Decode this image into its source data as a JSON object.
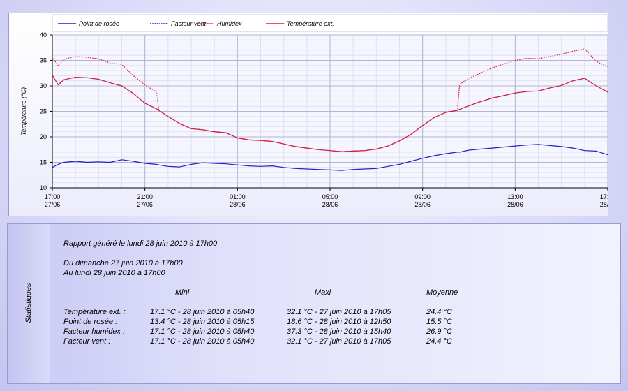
{
  "chart_data": {
    "type": "line",
    "ylabel": "Température (°C)",
    "ylim": [
      10,
      40
    ],
    "yticks": [
      10,
      15,
      20,
      25,
      30,
      35,
      40
    ],
    "xlim_hours": [
      0,
      24
    ],
    "xticks": [
      {
        "time": "17:00",
        "date": "27/06"
      },
      {
        "time": "21:00",
        "date": "27/06"
      },
      {
        "time": "01:00",
        "date": "28/06"
      },
      {
        "time": "05:00",
        "date": "28/06"
      },
      {
        "time": "09:00",
        "date": "28/06"
      },
      {
        "time": "13:00",
        "date": "28/06"
      },
      {
        "time": "17:00",
        "date": "28/06"
      }
    ],
    "grid": true,
    "legend_position": "top",
    "x": [
      0,
      0.25,
      0.5,
      1,
      1.5,
      2,
      2.5,
      3,
      3.5,
      4,
      4.5,
      4.6,
      5,
      5.5,
      6,
      6.5,
      7,
      7.5,
      8,
      8.5,
      9,
      9.5,
      10,
      10.5,
      11,
      11.5,
      12,
      12.5,
      13,
      13.5,
      14,
      14.5,
      15,
      15.5,
      16,
      16.5,
      17,
      17.5,
      17.6,
      18,
      18.5,
      19,
      19.5,
      20,
      20.5,
      21,
      21.5,
      22,
      22.5,
      23,
      23.5,
      24
    ],
    "series": [
      {
        "name": "Point de rosée",
        "color": "#1f1fd0",
        "style": "solid",
        "values": [
          14.0,
          14.6,
          15.0,
          15.2,
          15.0,
          15.1,
          15.0,
          15.5,
          15.2,
          14.8,
          14.6,
          14.5,
          14.2,
          14.1,
          14.6,
          14.9,
          14.8,
          14.7,
          14.5,
          14.3,
          14.2,
          14.3,
          14.0,
          13.8,
          13.7,
          13.6,
          13.5,
          13.4,
          13.6,
          13.7,
          13.8,
          14.2,
          14.6,
          15.2,
          15.8,
          16.3,
          16.7,
          17.0,
          17.0,
          17.4,
          17.6,
          17.8,
          18.0,
          18.2,
          18.4,
          18.5,
          18.3,
          18.1,
          17.8,
          17.3,
          17.2,
          16.5
        ]
      },
      {
        "name": "Facteur vent",
        "color": "#1f1fd0",
        "style": "dotted",
        "values": [
          32.1,
          30.2,
          31.2,
          31.7,
          31.6,
          31.3,
          30.6,
          30.0,
          28.5,
          26.6,
          25.5,
          25.2,
          24.0,
          22.6,
          21.6,
          21.4,
          21.0,
          20.8,
          19.8,
          19.4,
          19.3,
          19.1,
          18.6,
          18.1,
          17.8,
          17.5,
          17.3,
          17.1,
          17.2,
          17.3,
          17.6,
          18.2,
          19.2,
          20.5,
          22.2,
          23.8,
          24.8,
          25.2,
          25.4,
          26.1,
          26.9,
          27.6,
          28.1,
          28.6,
          28.9,
          29.0,
          29.6,
          30.1,
          31.0,
          31.5,
          30.0,
          28.8
        ]
      },
      {
        "name": "Humidex",
        "color": "#d81b3c",
        "style": "dotted",
        "values": [
          35.5,
          34.0,
          35.2,
          35.8,
          35.6,
          35.3,
          34.5,
          34.2,
          32.0,
          30.2,
          28.8,
          25.2,
          24.0,
          22.6,
          21.6,
          21.4,
          21.0,
          20.8,
          19.8,
          19.4,
          19.3,
          19.1,
          18.6,
          18.1,
          17.8,
          17.5,
          17.3,
          17.1,
          17.2,
          17.3,
          17.6,
          18.2,
          19.2,
          20.5,
          22.2,
          23.8,
          24.8,
          25.2,
          30.3,
          31.5,
          32.5,
          33.5,
          34.3,
          35.0,
          35.4,
          35.3,
          35.8,
          36.2,
          36.8,
          37.3,
          34.8,
          33.8
        ]
      },
      {
        "name": "Température ext.",
        "color": "#d81b3c",
        "style": "solid",
        "values": [
          32.1,
          30.2,
          31.2,
          31.7,
          31.6,
          31.3,
          30.6,
          30.0,
          28.5,
          26.6,
          25.5,
          25.2,
          24.0,
          22.6,
          21.6,
          21.4,
          21.0,
          20.8,
          19.8,
          19.4,
          19.3,
          19.1,
          18.6,
          18.1,
          17.8,
          17.5,
          17.3,
          17.1,
          17.2,
          17.3,
          17.6,
          18.2,
          19.2,
          20.5,
          22.2,
          23.8,
          24.8,
          25.2,
          25.4,
          26.1,
          26.9,
          27.6,
          28.1,
          28.6,
          28.9,
          29.0,
          29.6,
          30.1,
          31.0,
          31.5,
          30.0,
          28.8
        ]
      }
    ]
  },
  "stats": {
    "side_label": "Statistiques",
    "report_line": "Rapport généré le lundi 28 juin 2010 à 17h00",
    "from_line": "Du dimanche 27 juin 2010 à 17h00",
    "to_line": "Au lundi 28 juin 2010 à 17h00",
    "headers": {
      "mini": "Mini",
      "maxi": "Maxi",
      "moyenne": "Moyenne"
    },
    "rows": [
      {
        "label": "Température ext. :",
        "mini": "17.1 °C - 28 juin 2010 à 05h40",
        "maxi": "32.1 °C - 27 juin 2010 à 17h05",
        "avg": "24.4 °C"
      },
      {
        "label": "Point de rosée :",
        "mini": "13.4 °C - 28 juin 2010 à 05h15",
        "maxi": "18.6 °C - 28 juin 2010 à 12h50",
        "avg": "15.5 °C"
      },
      {
        "label": "Facteur humidex :",
        "mini": "17.1 °C - 28 juin 2010 à 05h40",
        "maxi": "37.3 °C - 28 juin 2010 à 15h40",
        "avg": "26.9 °C"
      },
      {
        "label": "Facteur vent :",
        "mini": "17.1 °C - 28 juin 2010 à 05h40",
        "maxi": "32.1 °C - 27 juin 2010 à 17h05",
        "avg": "24.4 °C"
      }
    ]
  }
}
